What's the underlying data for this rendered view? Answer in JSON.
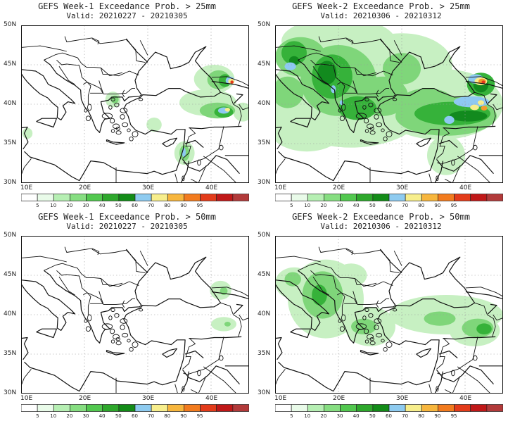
{
  "panels": [
    {
      "title": "GEFS Week-1 Exceedance Prob. > 25mm",
      "valid": "Valid: 20210227 - 20210305"
    },
    {
      "title": "GEFS Week-2 Exceedance Prob. > 25mm",
      "valid": "Valid: 20210306 - 20210312"
    },
    {
      "title": "GEFS Week-1 Exceedance Prob. > 50mm",
      "valid": "Valid: 20210227 - 20210305"
    },
    {
      "title": "GEFS Week-2 Exceedance Prob. > 50mm",
      "valid": "Valid: 20210306 - 20210312"
    }
  ],
  "lat_labels": [
    "50N",
    "45N",
    "40N",
    "35N",
    "30N"
  ],
  "lon_labels": [
    "10E",
    "20E",
    "30E",
    "40E"
  ],
  "colorbar": {
    "labels": [
      "5",
      "10",
      "20",
      "30",
      "40",
      "50",
      "60",
      "70",
      "80",
      "90",
      "95"
    ],
    "colors": [
      "#ffffff",
      "#e9fbe9",
      "#b6efb3",
      "#86de81",
      "#52c84f",
      "#2ea82c",
      "#138c18",
      "#8ecbf0",
      "#f7ee8c",
      "#f7b63d",
      "#f27b1e",
      "#e33b1a",
      "#c01818",
      "#b23a3a"
    ]
  },
  "precip_colors": {
    "light": "#c7f0c2",
    "mid": "#7fd67a",
    "dark": "#36b23a",
    "darkest": "#128a1e",
    "blue": "#8ec9f2",
    "yellow": "#f7ee8c",
    "orange": "#f39a2c",
    "red": "#e3391c"
  }
}
